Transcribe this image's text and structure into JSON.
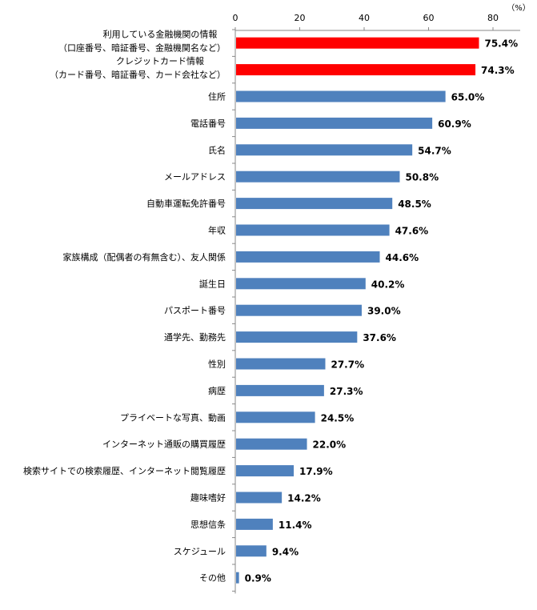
{
  "chart_data": {
    "type": "bar",
    "orientation": "horizontal",
    "unit_label": "（%）",
    "xlim": [
      0,
      80
    ],
    "xticks": [
      0,
      20,
      40,
      60,
      80
    ],
    "grid": false,
    "highlight_color": "#ff0000",
    "bar_color": "#4f81bd",
    "categories": [
      [
        "利用している金融機関の情報",
        "（口座番号、暗証番号、金融機関名など）"
      ],
      [
        "クレジットカード情報",
        "（カード番号、暗証番号、カード会社など）"
      ],
      [
        "住所"
      ],
      [
        "電話番号"
      ],
      [
        "氏名"
      ],
      [
        "メールアドレス"
      ],
      [
        "自動車運転免許番号"
      ],
      [
        "年収"
      ],
      [
        "家族構成（配偶者の有無含む）、友人関係"
      ],
      [
        "誕生日"
      ],
      [
        "パスポート番号"
      ],
      [
        "通学先、勤務先"
      ],
      [
        "性別"
      ],
      [
        "病歴"
      ],
      [
        "プライベートな写真、動画"
      ],
      [
        "インターネット通販の購買履歴"
      ],
      [
        "検索サイトでの検索履歴、インターネット閲覧履歴"
      ],
      [
        "趣味嗜好"
      ],
      [
        "思想信条"
      ],
      [
        "スケジュール"
      ],
      [
        "その他"
      ]
    ],
    "values": [
      75.4,
      74.3,
      65.0,
      60.9,
      54.7,
      50.8,
      48.5,
      47.6,
      44.6,
      40.2,
      39.0,
      37.6,
      27.7,
      27.3,
      24.5,
      22.0,
      17.9,
      14.2,
      11.4,
      9.4,
      0.9
    ],
    "highlighted": [
      0,
      1
    ],
    "data_labels": [
      "75.4%",
      "74.3%",
      "65.0%",
      "60.9%",
      "54.7%",
      "50.8%",
      "48.5%",
      "47.6%",
      "44.6%",
      "40.2%",
      "39.0%",
      "37.6%",
      "27.7%",
      "27.3%",
      "24.5%",
      "22.0%",
      "17.9%",
      "14.2%",
      "11.4%",
      "9.4%",
      "0.9%"
    ]
  }
}
